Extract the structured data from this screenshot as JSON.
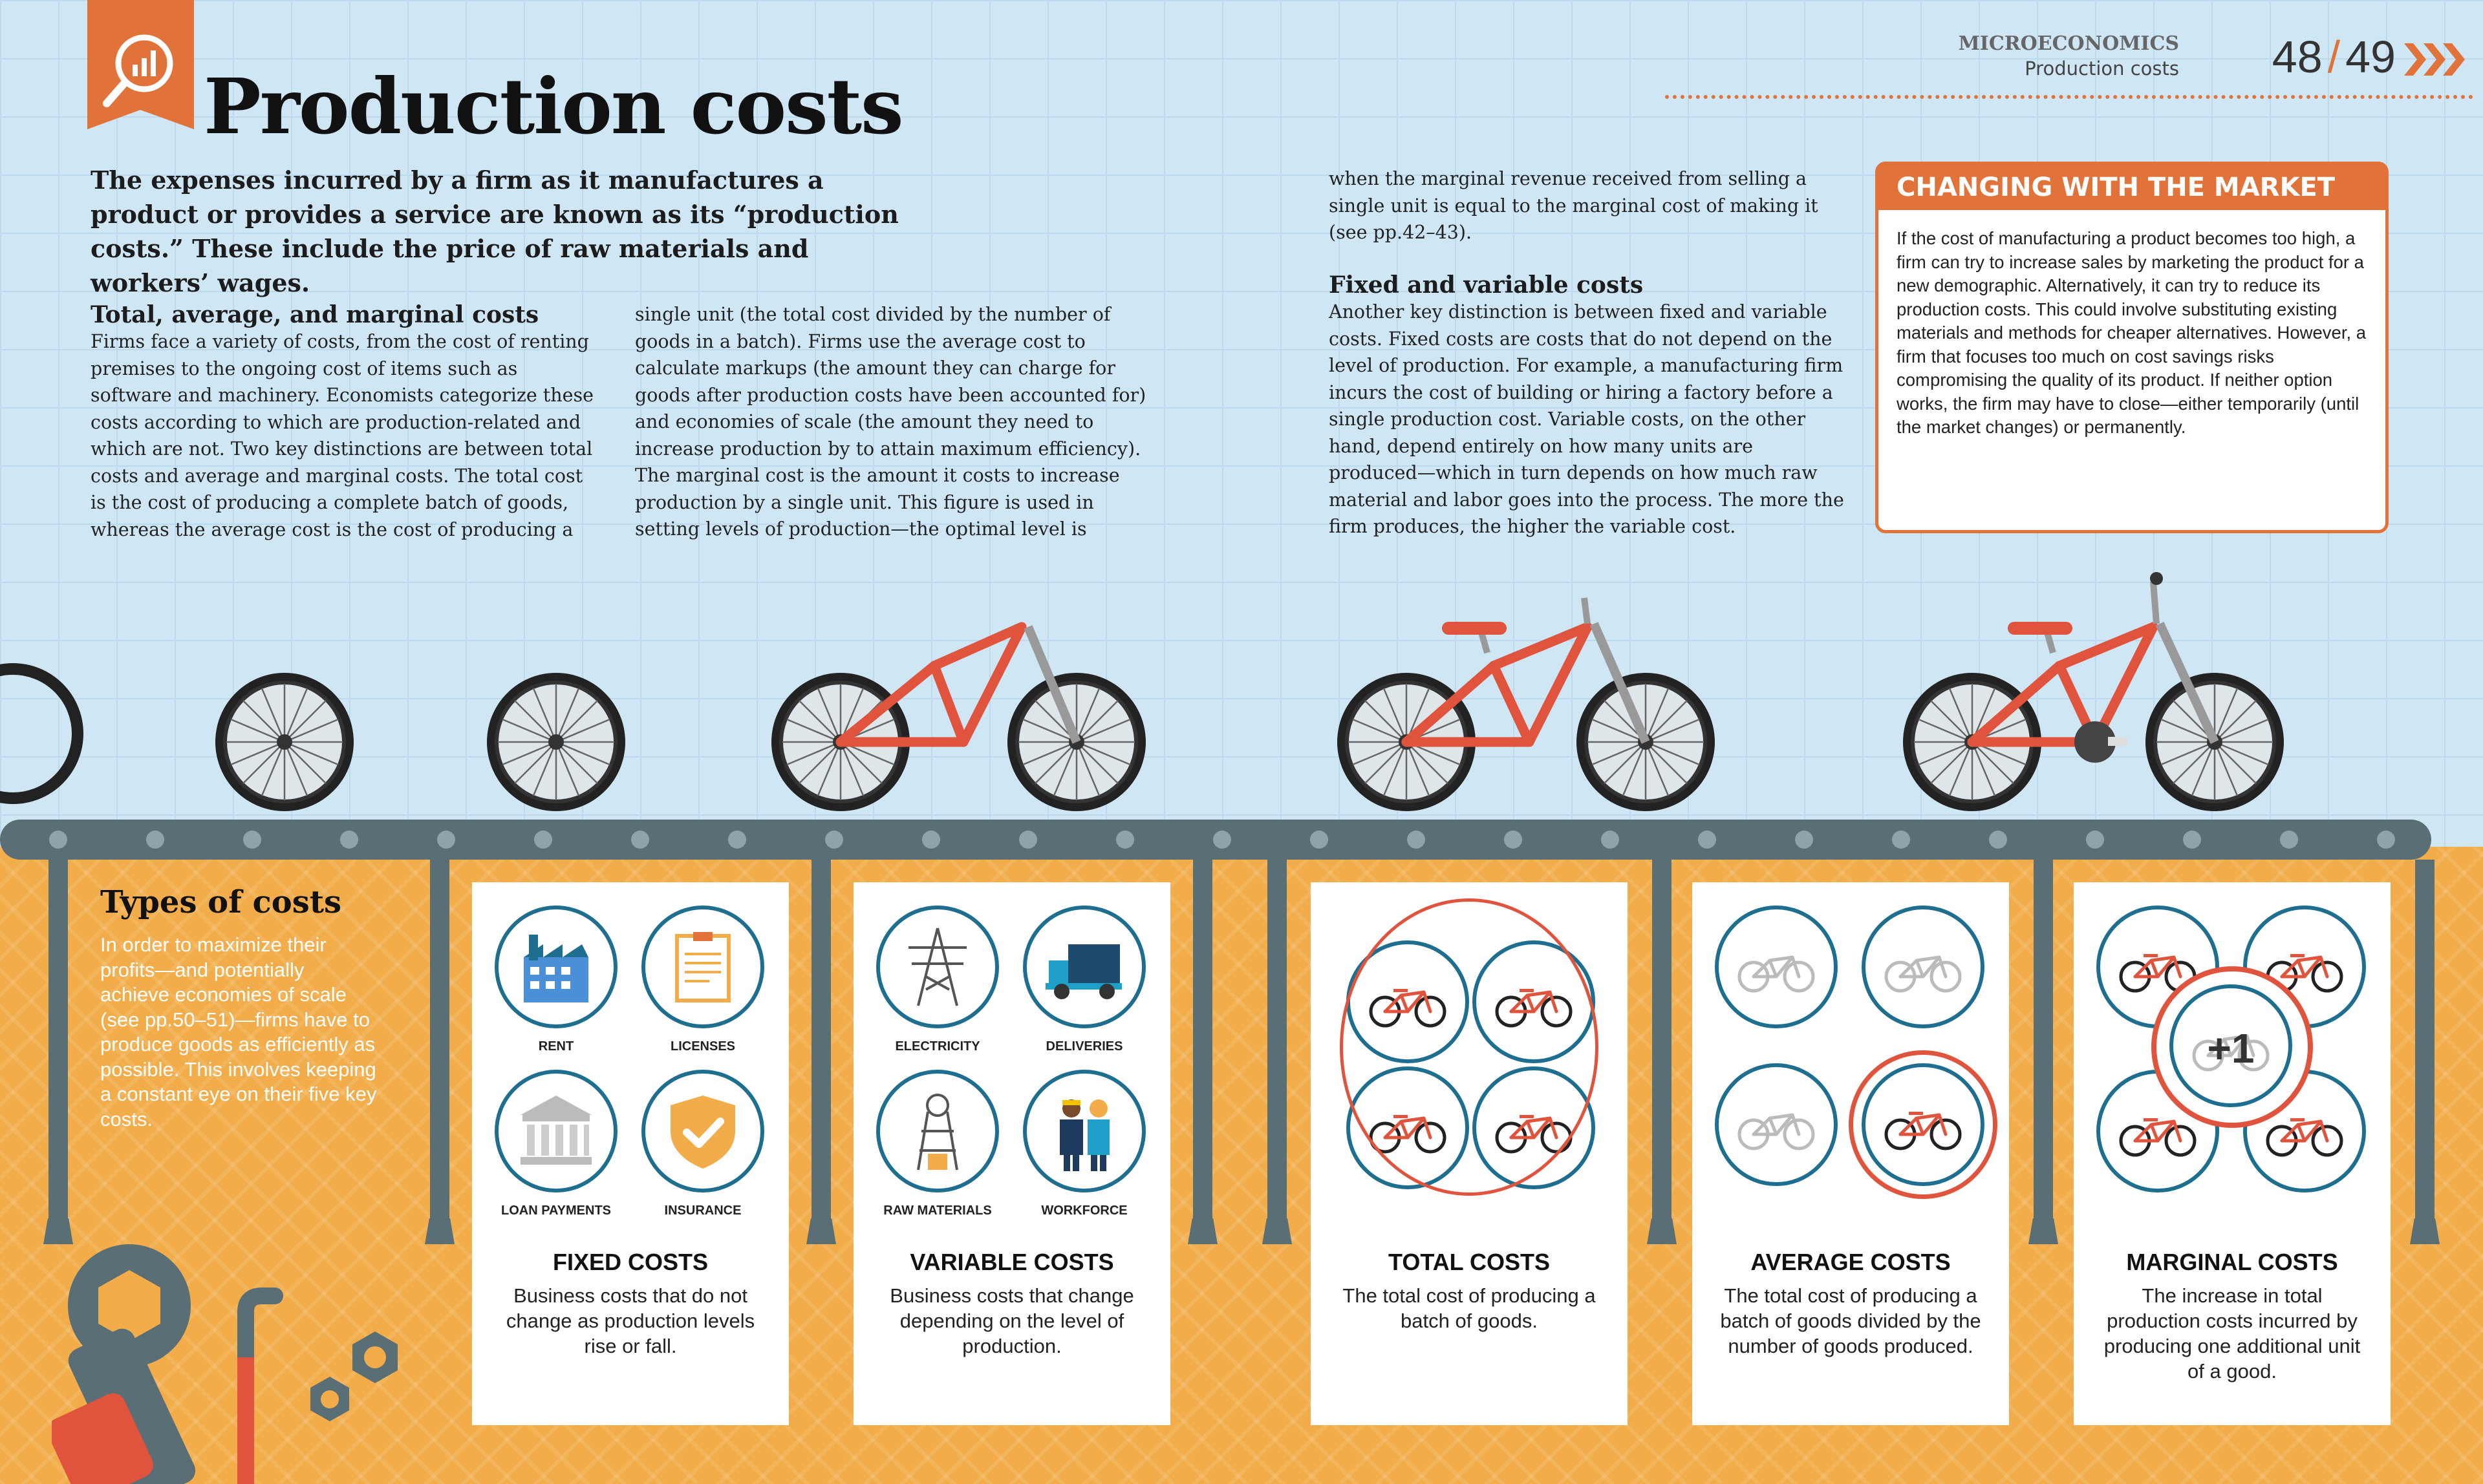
{
  "header": {
    "title": "Production costs",
    "section": "MICROECONOMICS",
    "subsection": "Production costs",
    "page_left": "48",
    "page_sep": "/",
    "page_right": "49"
  },
  "intro": "The expenses incurred by a firm as it manufactures a product or provides a service are known as its “production costs.” These include the price of raw materials and workers’ wages.",
  "section1": {
    "heading": "Total, average, and marginal costs",
    "text_col1": "Firms face a variety of costs, from the cost of renting premises to the ongoing cost of items such as software and machinery. Economists categorize these costs according to which are production-related and which are not. Two key distinctions are between total costs and average and marginal costs. The total cost is the cost of producing a complete batch of goods, whereas the average cost is the cost of producing a",
    "text_col2": "single unit (the total cost divided by the number of goods in a batch). Firms use the average cost to calculate markups (the amount they can charge for goods after production costs have been accounted for) and economies of scale (the amount they need to increase production by to attain maximum efficiency). The marginal cost is the amount it costs to increase production by a single unit. This figure is used in setting levels of production—the optimal level is",
    "text_col3": "when the marginal revenue received from selling a single unit is equal to the marginal cost of making it (see pp.42–43)."
  },
  "section2": {
    "heading": "Fixed and variable costs",
    "text": "Another key distinction is between fixed and variable costs. Fixed costs are costs that do not depend on the level of production. For example, a manufacturing firm incurs the cost of building or hiring a factory before a single production cost. Variable costs, on the other hand, depend entirely on how many units are produced—which in turn depends on how much raw material and labor goes into the process. The more the firm produces, the higher the variable cost."
  },
  "sidebar": {
    "title": "CHANGING WITH THE MARKET",
    "text": "If the cost of manufacturing a product becomes too high, a firm can try to increase sales by marketing the product for a new demographic. Alternatively, it can try to reduce its production costs. This could involve substituting existing materials and methods for cheaper alternatives. However, a firm that focuses too much on cost savings risks compromising the quality of its product. If neither option works, the firm may have to close—either temporarily (until the market changes) or permanently."
  },
  "types": {
    "title": "Types of costs",
    "text": "In order to maximize their profits—and potentially achieve economies of scale (see pp.50–51)—firms have to produce goods as efficiently as possible. This involves keeping a constant eye on their five key costs."
  },
  "cards": {
    "fixed": {
      "title": "FIXED COSTS",
      "desc": "Business costs that do not change as production levels rise or fall.",
      "icons": [
        "RENT",
        "LICENSES",
        "LOAN PAYMENTS",
        "INSURANCE"
      ]
    },
    "variable": {
      "title": "VARIABLE COSTS",
      "desc": "Business costs that change depending on the level of production.",
      "icons": [
        "ELECTRICITY",
        "DELIVERIES",
        "RAW MATERIALS",
        "WORKFORCE"
      ]
    },
    "total": {
      "title": "TOTAL COSTS",
      "desc": "The total cost of producing a batch of goods."
    },
    "average": {
      "title": "AVERAGE COSTS",
      "desc": "The total cost of producing a batch of goods divided by the number of goods produced."
    },
    "marginal": {
      "title": "MARGINAL COSTS",
      "desc": "The increase in total production costs incurred by producing one additional unit of a good.",
      "badge": "+1"
    }
  },
  "colors": {
    "orange": "#e0723a",
    "blue_ring": "#1e6e90",
    "bike_red": "#e0533d",
    "mustard": "#f2ad4a"
  }
}
